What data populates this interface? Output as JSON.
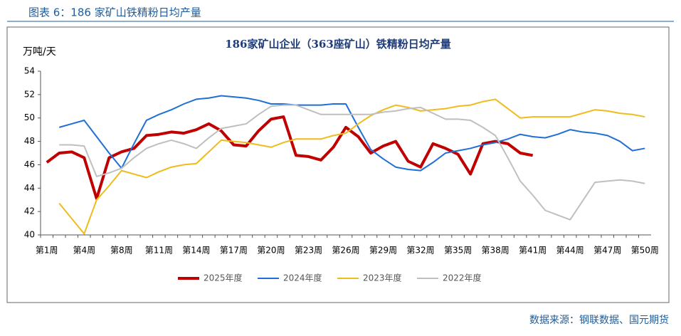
{
  "caption": "图表 6：186 家矿山铁精粉日均产量",
  "source": "数据来源：钢联数据、国元期货",
  "chart_data": {
    "type": "line",
    "title": "186家矿山企业（363座矿山）铁精粉日均产量",
    "y_label": "万吨/天",
    "categories": [
      "第1周",
      null,
      null,
      "第4周",
      null,
      null,
      "第8周",
      null,
      null,
      "第11周",
      null,
      null,
      "第14周",
      null,
      null,
      "第17周",
      null,
      null,
      "第20周",
      null,
      null,
      "第23周",
      null,
      null,
      "第26周",
      null,
      null,
      "第29周",
      null,
      null,
      "第32周",
      null,
      null,
      "第35周",
      null,
      null,
      "第38周",
      null,
      null,
      "第41周",
      null,
      null,
      "第44周",
      null,
      null,
      "第47周",
      null,
      null,
      "第50周"
    ],
    "ylim": [
      40,
      54
    ],
    "yticks": [
      40,
      42,
      44,
      46,
      48,
      50,
      52,
      54
    ],
    "legend": "bottom",
    "series": [
      {
        "name": "2025年度",
        "color": "#c00000",
        "width": 4,
        "values": [
          46.2,
          47.0,
          47.1,
          46.6,
          43.1,
          46.6,
          47.1,
          47.4,
          48.5,
          48.6,
          48.8,
          48.7,
          49.0,
          49.5,
          48.9,
          47.7,
          47.6,
          48.9,
          49.9,
          50.1,
          46.8,
          46.7,
          46.4,
          47.5,
          49.2,
          48.4,
          47.0,
          47.6,
          48.0,
          46.3,
          45.8,
          47.8,
          47.4,
          46.9,
          45.2,
          47.8,
          48.0,
          47.8,
          47.0,
          46.8,
          null,
          null,
          null,
          null,
          null,
          null,
          null,
          null,
          null
        ]
      },
      {
        "name": "2024年度",
        "color": "#1f6fd6",
        "width": 2,
        "values": [
          null,
          49.2,
          49.5,
          49.8,
          48.4,
          47.0,
          45.7,
          47.8,
          49.8,
          50.3,
          50.7,
          51.2,
          51.6,
          51.7,
          51.9,
          51.8,
          51.7,
          51.5,
          51.2,
          51.2,
          51.1,
          51.1,
          51.1,
          51.2,
          51.2,
          49.2,
          47.3,
          46.5,
          45.8,
          45.6,
          45.5,
          46.2,
          47.0,
          47.2,
          47.4,
          47.7,
          47.9,
          48.2,
          48.6,
          48.4,
          48.3,
          48.6,
          49.0,
          48.8,
          48.7,
          48.5,
          48.0,
          47.2,
          47.4
        ]
      },
      {
        "name": "2023年度",
        "color": "#eebc1b",
        "width": 2,
        "values": [
          null,
          42.7,
          41.4,
          40.1,
          43.0,
          44.2,
          45.5,
          45.2,
          44.9,
          45.4,
          45.8,
          46.0,
          46.1,
          47.1,
          48.1,
          48.0,
          47.9,
          47.7,
          47.5,
          47.9,
          48.2,
          48.2,
          48.2,
          48.5,
          48.7,
          49.5,
          50.2,
          50.7,
          51.1,
          50.9,
          50.6,
          50.7,
          50.8,
          51.0,
          51.1,
          51.4,
          51.6,
          50.8,
          50.0,
          50.1,
          50.1,
          50.1,
          50.1,
          50.4,
          50.7,
          50.6,
          50.4,
          50.3,
          50.1
        ]
      },
      {
        "name": "2022年度",
        "color": "#bfbfbf",
        "width": 2,
        "values": [
          null,
          47.7,
          47.7,
          47.6,
          45.0,
          45.3,
          45.7,
          46.6,
          47.4,
          47.8,
          48.1,
          47.8,
          47.4,
          48.3,
          49.1,
          49.3,
          49.5,
          50.3,
          51.0,
          51.1,
          51.1,
          50.7,
          50.3,
          50.3,
          50.3,
          50.3,
          50.3,
          50.5,
          50.6,
          50.8,
          50.9,
          50.4,
          49.9,
          49.9,
          49.8,
          49.2,
          48.5,
          46.6,
          44.6,
          43.4,
          42.1,
          41.7,
          41.3,
          42.9,
          44.5,
          44.6,
          44.7,
          44.6,
          44.4
        ]
      }
    ]
  }
}
